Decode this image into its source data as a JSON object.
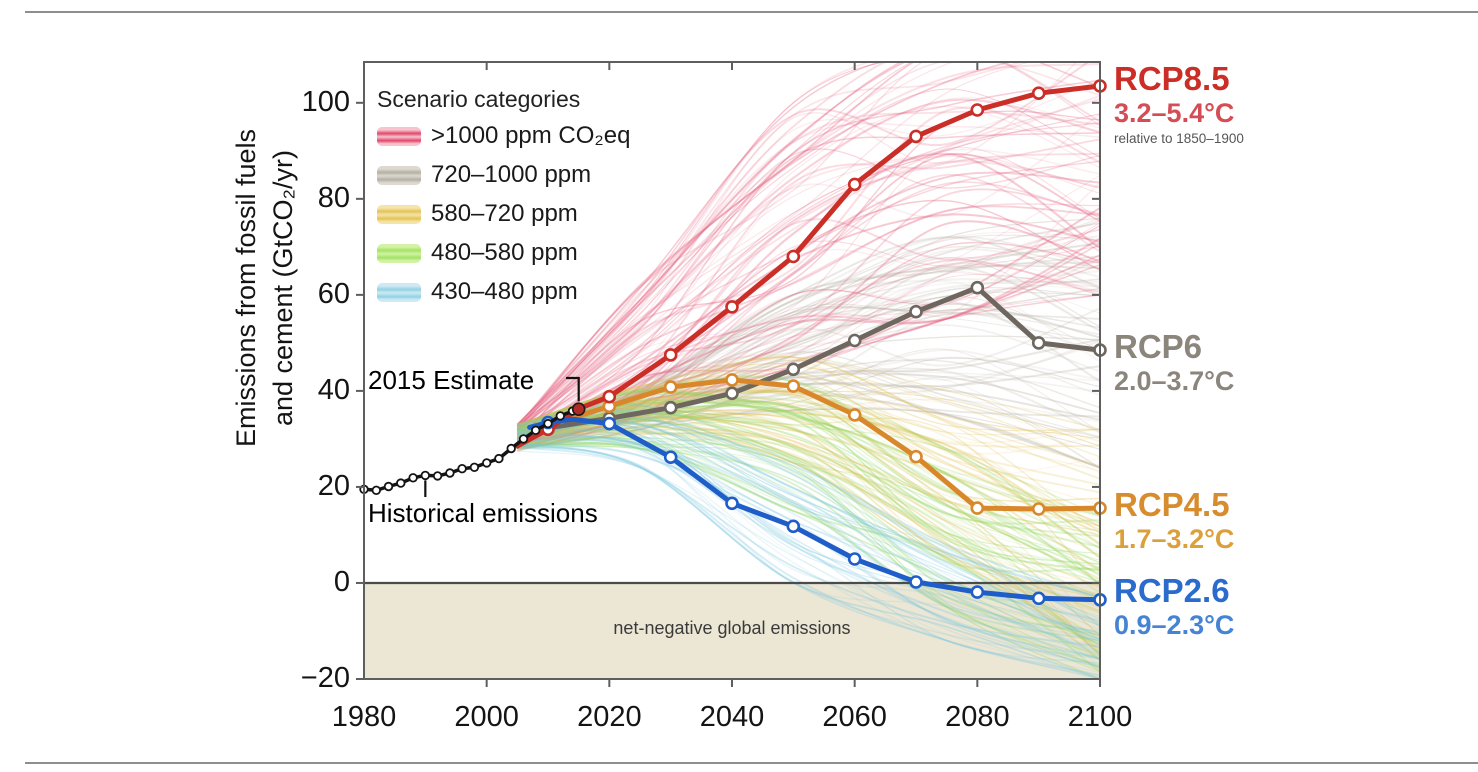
{
  "figure": {
    "ylabel_line1": "Emissions from fossil fuels",
    "ylabel_line2": "and cement (GtCO₂/yr)"
  },
  "chart_data": {
    "type": "line",
    "title": "",
    "xlabel": "",
    "ylabel": "Emissions from fossil fuels and cement (GtCO₂/yr)",
    "xlim": [
      1980,
      2100
    ],
    "ylim": [
      -20,
      108.5
    ],
    "grid": false,
    "x_ticks": [
      1980,
      2000,
      2020,
      2040,
      2060,
      2080,
      2100
    ],
    "x_tick_labels": [
      "1980",
      "2000",
      "2020",
      "2040",
      "2060",
      "2080",
      "2100"
    ],
    "y_ticks": [
      -20,
      0,
      20,
      40,
      60,
      80,
      100
    ],
    "y_tick_labels": [
      "−20",
      "0",
      "20",
      "40",
      "60",
      "80",
      "100"
    ],
    "colors": {
      "net_negative_bg": "#ece6d4",
      "axis": "#5e5e5e",
      "zero_line": "#4b4b4b",
      "rule": "#8e8e8e"
    },
    "legend": {
      "title": "Scenario categories",
      "position": "upper-left",
      "items": [
        {
          "label": ">1000 ppm CO₂eq",
          "light": "#f7c3cf",
          "dark": "#e0486a"
        },
        {
          "label": "720–1000 ppm",
          "light": "#ddd8d0",
          "dark": "#b5afa4"
        },
        {
          "label": "580–720 ppm",
          "light": "#f4e4ab",
          "dark": "#e4c353"
        },
        {
          "label": "480–580 ppm",
          "light": "#d3f2a5",
          "dark": "#a2e365"
        },
        {
          "label": "430–480 ppm",
          "light": "#cfeaf2",
          "dark": "#90d2e4"
        }
      ]
    },
    "series": [
      {
        "id": "rcp85",
        "label": "RCP8.5",
        "color": "#cb2d27",
        "width": 5,
        "markers_from": 2010,
        "points": [
          [
            2005,
            28.5
          ],
          [
            2010,
            32
          ],
          [
            2015,
            36.3
          ],
          [
            2020,
            38.8
          ],
          [
            2030,
            47.5
          ],
          [
            2040,
            57.5
          ],
          [
            2050,
            68
          ],
          [
            2060,
            83
          ],
          [
            2070,
            93
          ],
          [
            2080,
            98.5
          ],
          [
            2090,
            102
          ],
          [
            2100,
            103.5
          ]
        ]
      },
      {
        "id": "rcp6",
        "label": "RCP6",
        "color": "#6e6760",
        "width": 5,
        "markers_from": 2010,
        "points": [
          [
            2010,
            32.3
          ],
          [
            2020,
            34.3
          ],
          [
            2030,
            36.5
          ],
          [
            2040,
            39.5
          ],
          [
            2050,
            44.5
          ],
          [
            2060,
            50.5
          ],
          [
            2070,
            56.5
          ],
          [
            2080,
            61.5
          ],
          [
            2090,
            50
          ],
          [
            2100,
            48.5
          ]
        ]
      },
      {
        "id": "rcp45",
        "label": "RCP4.5",
        "color": "#d8882b",
        "width": 5,
        "markers_from": 2010,
        "points": [
          [
            2008,
            31.5
          ],
          [
            2010,
            32.8
          ],
          [
            2020,
            36.8
          ],
          [
            2030,
            40.8
          ],
          [
            2040,
            42.3
          ],
          [
            2050,
            41
          ],
          [
            2060,
            35
          ],
          [
            2070,
            26.3
          ],
          [
            2080,
            15.6
          ],
          [
            2090,
            15.4
          ],
          [
            2100,
            15.6
          ]
        ]
      },
      {
        "id": "rcp26",
        "label": "RCP2.6",
        "color": "#1f5ec9",
        "width": 5,
        "markers_from": 2010,
        "points": [
          [
            2007,
            32.4
          ],
          [
            2010,
            33.4
          ],
          [
            2014,
            34.1
          ],
          [
            2020,
            33.2
          ],
          [
            2030,
            26.2
          ],
          [
            2040,
            16.6
          ],
          [
            2050,
            11.8
          ],
          [
            2060,
            5
          ],
          [
            2070,
            0.2
          ],
          [
            2080,
            -1.9
          ],
          [
            2090,
            -3.2
          ],
          [
            2100,
            -3.5
          ]
        ]
      },
      {
        "id": "historical",
        "label": "Historical emissions",
        "color": "#141414",
        "width": 3.5,
        "marker_all": true,
        "points": [
          [
            1980,
            19.5
          ],
          [
            1982,
            19.3
          ],
          [
            1984,
            20.1
          ],
          [
            1986,
            20.8
          ],
          [
            1988,
            21.9
          ],
          [
            1990,
            22.4
          ],
          [
            1992,
            22.3
          ],
          [
            1994,
            22.9
          ],
          [
            1996,
            23.8
          ],
          [
            1998,
            24.1
          ],
          [
            2000,
            25.0
          ],
          [
            2002,
            25.9
          ],
          [
            2004,
            28.0
          ],
          [
            2006,
            30.0
          ],
          [
            2008,
            31.8
          ],
          [
            2010,
            33.2
          ],
          [
            2012,
            34.8
          ],
          [
            2014,
            35.8
          ],
          [
            2015,
            36.2
          ]
        ]
      }
    ],
    "estimate_2015": {
      "label": "2015 Estimate",
      "year": 2015,
      "value": 36.2,
      "dot_color": "#b02a26"
    },
    "ensembles": [
      {
        "category": ">1000 ppm CO₂eq",
        "color": "#e4607e",
        "count": 75,
        "anchors": [
          [
            2005,
            27.5,
            33
          ],
          [
            2025,
            35,
            62
          ],
          [
            2050,
            45,
            100
          ],
          [
            2075,
            55,
            112
          ],
          [
            2100,
            60,
            113
          ]
        ]
      },
      {
        "category": "720–1000 ppm",
        "color": "#b9b2a6",
        "count": 62,
        "anchors": [
          [
            2005,
            28,
            33
          ],
          [
            2025,
            32,
            42
          ],
          [
            2050,
            36,
            60
          ],
          [
            2075,
            35,
            72
          ],
          [
            2100,
            24,
            76
          ]
        ]
      },
      {
        "category": "580–720 ppm",
        "color": "#e1be4c",
        "count": 55,
        "anchors": [
          [
            2005,
            28,
            33
          ],
          [
            2025,
            31,
            41
          ],
          [
            2050,
            25,
            47
          ],
          [
            2075,
            5,
            40
          ],
          [
            2100,
            -16,
            32
          ]
        ]
      },
      {
        "category": "480–580 ppm",
        "color": "#8ed75a",
        "count": 55,
        "anchors": [
          [
            2005,
            28,
            33
          ],
          [
            2025,
            28,
            40
          ],
          [
            2050,
            15,
            42
          ],
          [
            2075,
            -5,
            28
          ],
          [
            2100,
            -20,
            14
          ]
        ]
      },
      {
        "category": "430–480 ppm",
        "color": "#7cc8df",
        "count": 42,
        "anchors": [
          [
            2005,
            27.5,
            33
          ],
          [
            2025,
            24,
            37
          ],
          [
            2050,
            0,
            25
          ],
          [
            2075,
            -12,
            8
          ],
          [
            2100,
            -20,
            -3
          ]
        ]
      }
    ],
    "annotations": {
      "estimate": "2015 Estimate",
      "historical": "Historical emissions",
      "net_negative": "net-negative global emissions"
    },
    "right_labels": [
      {
        "id": "rcp85",
        "name": "RCP8.5",
        "temp": "3.2–5.4°C",
        "note": "relative to 1850–1900",
        "color": "#cb2d27",
        "temp_color": "#d44d55"
      },
      {
        "id": "rcp6",
        "name": "RCP6",
        "temp": "2.0–3.7°C",
        "note": "",
        "color": "#8b857c",
        "temp_color": "#8b857c"
      },
      {
        "id": "rcp45",
        "name": "RCP4.5",
        "temp": "1.7–3.2°C",
        "note": "",
        "color": "#d78c2d",
        "temp_color": "#dba03c"
      },
      {
        "id": "rcp26",
        "name": "RCP2.6",
        "temp": "0.9–2.3°C",
        "note": "",
        "color": "#2a6bcc",
        "temp_color": "#4584d4"
      }
    ]
  }
}
